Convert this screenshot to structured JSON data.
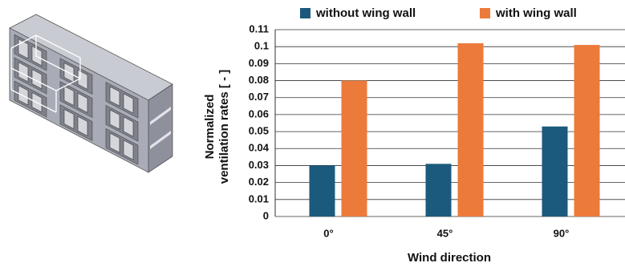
{
  "chart_data": {
    "type": "bar",
    "ylabel": [
      "Normalized",
      "ventilation rates  [ - ]"
    ],
    "xlabel": "Wind direction",
    "categories": [
      "0°",
      "45°",
      "90°"
    ],
    "series": [
      {
        "name": "without wing wall",
        "color": "#1b5a7c",
        "values": [
          0.03,
          0.031,
          0.053
        ]
      },
      {
        "name": "with wing wall",
        "color": "#ec7a3a",
        "values": [
          0.08,
          0.102,
          0.101
        ]
      }
    ],
    "ylim": [
      0,
      0.11
    ],
    "yticks": [
      0,
      0.01,
      0.02,
      0.03,
      0.04,
      0.05,
      0.06,
      0.07,
      0.08,
      0.09,
      0.1,
      0.11
    ],
    "grid": true
  }
}
